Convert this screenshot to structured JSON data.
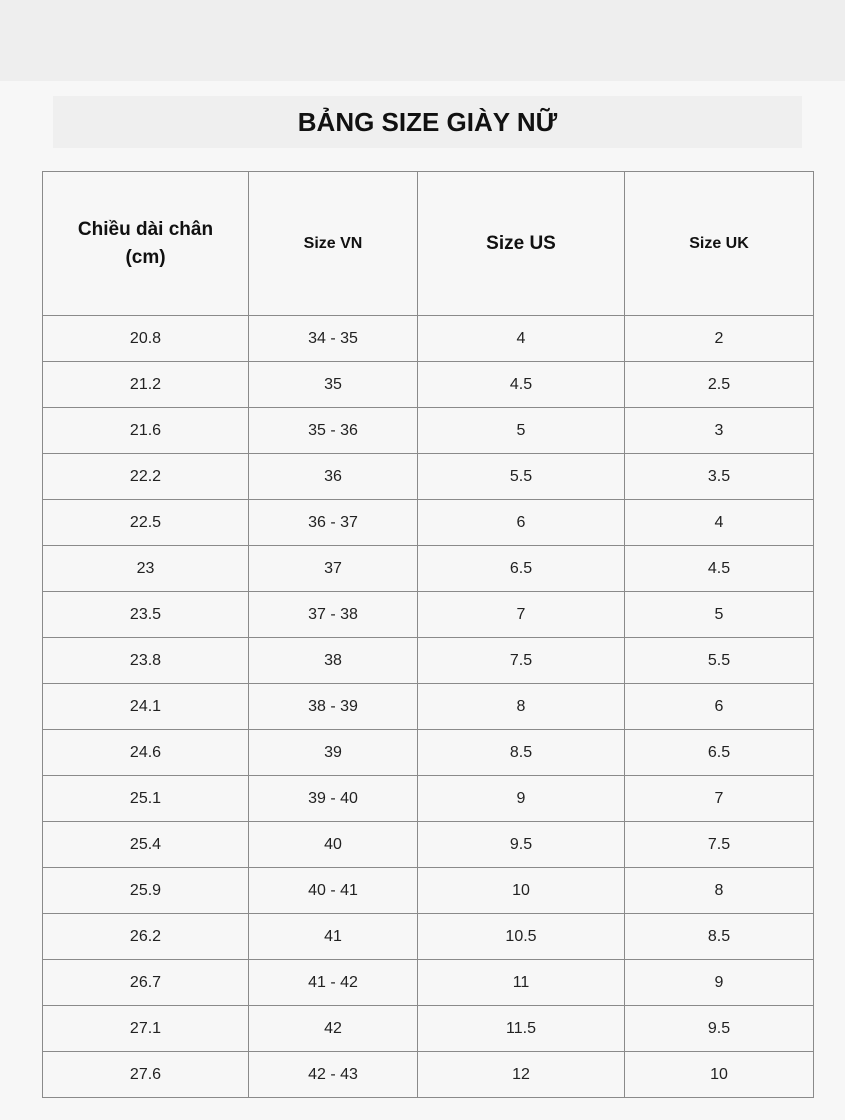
{
  "title": "BẢNG SIZE GIÀY NỮ",
  "table": {
    "headers": [
      "Chiều dài chân (cm)",
      "Size VN",
      "Size US",
      "Size UK"
    ],
    "rows": [
      [
        "20.8",
        "34 - 35",
        "4",
        "2"
      ],
      [
        "21.2",
        "35",
        "4.5",
        "2.5"
      ],
      [
        "21.6",
        "35 - 36",
        "5",
        "3"
      ],
      [
        "22.2",
        "36",
        "5.5",
        "3.5"
      ],
      [
        "22.5",
        "36 - 37",
        "6",
        "4"
      ],
      [
        "23",
        "37",
        "6.5",
        "4.5"
      ],
      [
        "23.5",
        "37 - 38",
        "7",
        "5"
      ],
      [
        "23.8",
        "38",
        "7.5",
        "5.5"
      ],
      [
        "24.1",
        "38 - 39",
        "8",
        "6"
      ],
      [
        "24.6",
        "39",
        "8.5",
        "6.5"
      ],
      [
        "25.1",
        "39 - 40",
        "9",
        "7"
      ],
      [
        "25.4",
        "40",
        "9.5",
        "7.5"
      ],
      [
        "25.9",
        "40 - 41",
        "10",
        "8"
      ],
      [
        "26.2",
        "41",
        "10.5",
        "8.5"
      ],
      [
        "26.7",
        "41 - 42",
        "11",
        "9"
      ],
      [
        "27.1",
        "42",
        "11.5",
        "9.5"
      ],
      [
        "27.6",
        "42 - 43",
        "12",
        "10"
      ]
    ]
  }
}
